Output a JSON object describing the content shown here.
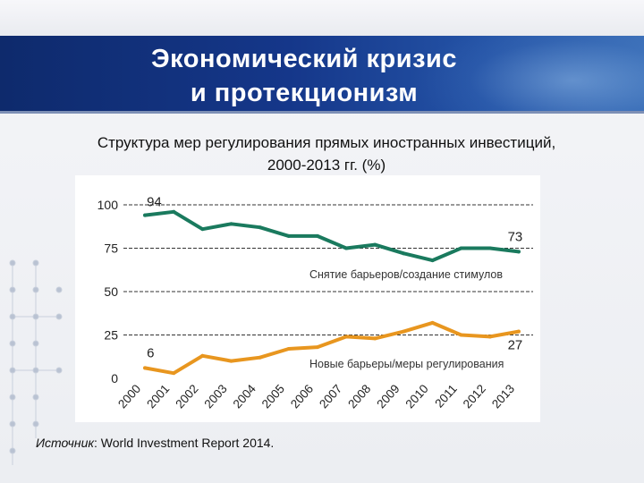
{
  "header": {
    "title_line1": "Экономический кризис",
    "title_line2": "и протекционизм"
  },
  "subtitle_line1": "Структура мер регулирования прямых иностранных инвестиций,",
  "subtitle_line2": "2000-2013 гг. (%)",
  "source": {
    "label": "Источник",
    "text": ": World Investment Report 2014."
  },
  "colors": {
    "liberalization": "#1a7a5e",
    "restriction": "#e8961f",
    "banner": "#15378a"
  },
  "chart_data": {
    "type": "line",
    "title": "Структура мер регулирования прямых иностранных инвестиций, 2000-2013 гг. (%)",
    "categories": [
      "2000",
      "2001",
      "2002",
      "2003",
      "2004",
      "2005",
      "2006",
      "2007",
      "2008",
      "2009",
      "2010",
      "2011",
      "2012",
      "2013"
    ],
    "y_ticks": [
      0,
      25,
      50,
      75,
      100
    ],
    "ylim": [
      0,
      100
    ],
    "grid": true,
    "series": [
      {
        "name": "Снятие барьеров/создание стимулов",
        "color_key": "liberalization",
        "values": [
          94,
          96,
          86,
          89,
          87,
          82,
          82,
          75,
          77,
          72,
          68,
          75,
          75,
          73
        ],
        "start_label": "94",
        "end_label": "73"
      },
      {
        "name": "Новые барьеры/меры регулирования",
        "color_key": "restriction",
        "values": [
          6,
          3,
          13,
          10,
          12,
          17,
          18,
          24,
          23,
          27,
          32,
          25,
          24,
          27
        ],
        "start_label": "6",
        "end_label": "27"
      }
    ]
  }
}
